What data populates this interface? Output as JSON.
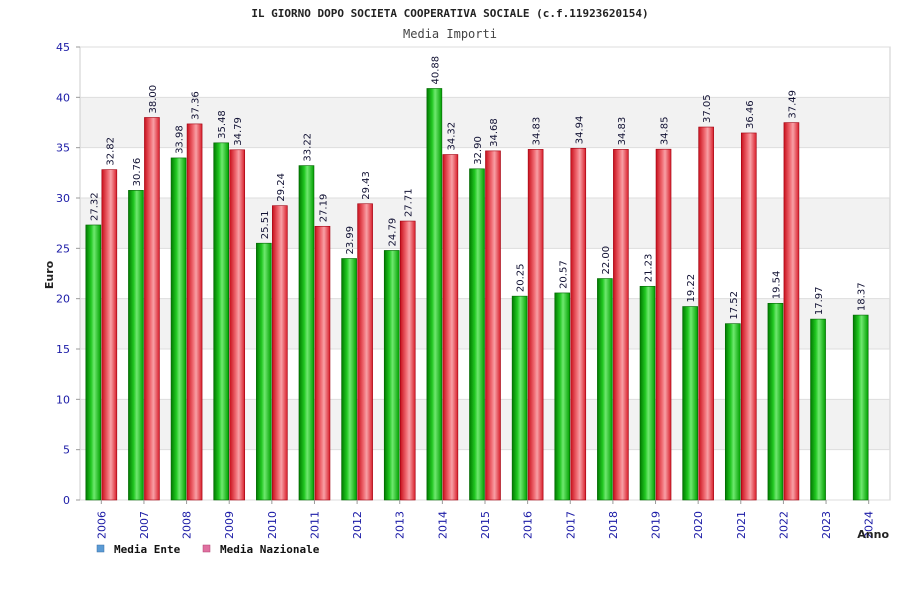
{
  "chart_data": {
    "type": "bar",
    "title": "IL GIORNO DOPO SOCIETA COOPERATIVA SOCIALE (c.f.11923620154)",
    "subtitle": "Media Importi",
    "xlabel": "Anno",
    "ylabel": "Euro",
    "ylim": [
      0,
      45
    ],
    "yticks": [
      0,
      5,
      10,
      15,
      20,
      25,
      30,
      35,
      40,
      45
    ],
    "grid": true,
    "legend_position": "bottom-left",
    "categories": [
      "2006",
      "2007",
      "2008",
      "2009",
      "2010",
      "2011",
      "2012",
      "2013",
      "2014",
      "2015",
      "2016",
      "2017",
      "2018",
      "2019",
      "2020",
      "2021",
      "2022",
      "2023",
      "2024"
    ],
    "series": [
      {
        "name": "Media Ente",
        "color": "#00b000",
        "legend_color": "#5b9bd5",
        "values": [
          27.32,
          30.76,
          33.98,
          35.48,
          25.51,
          33.22,
          23.99,
          24.79,
          40.88,
          32.9,
          20.25,
          20.57,
          22.0,
          21.23,
          19.22,
          17.52,
          19.54,
          17.97,
          18.37
        ],
        "labels": [
          "27.32",
          "30.76",
          "33.98",
          "35.48",
          "25.51",
          "33.22",
          "23.99",
          "24.79",
          "40.88",
          "32.90",
          "20.25",
          "20.57",
          "22.00",
          "21.23",
          "19.22",
          "17.52",
          "19.54",
          "17.97",
          "18.37"
        ]
      },
      {
        "name": "Media Nazionale",
        "color": "#e8323c",
        "legend_color": "#e070a0",
        "values": [
          32.82,
          38.0,
          37.36,
          34.79,
          29.24,
          27.19,
          29.43,
          27.71,
          34.32,
          34.68,
          34.83,
          34.94,
          34.83,
          34.85,
          37.05,
          36.46,
          37.49,
          null,
          null
        ],
        "labels": [
          "32.82",
          "38.00",
          "37.36",
          "34.79",
          "29.24",
          "27.19",
          "29.43",
          "27.71",
          "34.32",
          "34.68",
          "34.83",
          "34.94",
          "34.83",
          "34.85",
          "37.05",
          "36.46",
          "37.49",
          null,
          null
        ]
      }
    ]
  }
}
